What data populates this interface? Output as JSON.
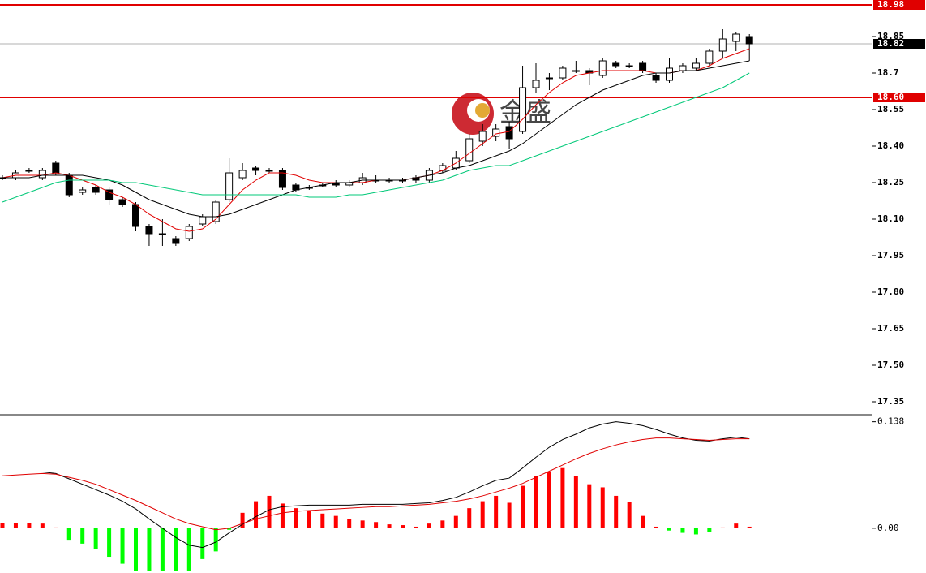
{
  "chart_data": {
    "type": "candlestick",
    "watermark": "金盛",
    "ylim": [
      17.3,
      19.0
    ],
    "yticks": [
      18.85,
      18.7,
      18.55,
      {
        "value": 18.4,
        "label": "18.40"
      },
      18.25,
      {
        "value": 18.1,
        "label": "18.10"
      },
      17.95,
      {
        "value": 17.8,
        "label": "17.80"
      },
      17.65,
      {
        "value": 17.5,
        "label": "17.50"
      },
      17.35
    ],
    "levels": [
      {
        "value": 18.98,
        "label": "18.98",
        "color": "#e00000"
      },
      {
        "value": 18.6,
        "label": "18.60",
        "color": "#e00000"
      },
      {
        "value": 18.82,
        "label": "18.82",
        "color": "#b0b0b0"
      }
    ],
    "up_color": "#ffffff",
    "down_color": "#000000",
    "open": [
      18.27,
      18.27,
      18.3,
      18.27,
      18.33,
      18.28,
      18.21,
      18.23,
      18.22,
      18.18,
      18.16,
      18.07,
      18.04,
      18.02,
      18.02,
      18.08,
      18.09,
      18.18,
      18.27,
      18.31,
      18.3,
      18.3,
      18.24,
      18.23,
      18.24,
      18.25,
      18.24,
      18.25,
      18.26,
      18.26,
      18.26,
      18.27,
      18.26,
      18.3,
      18.31,
      18.34,
      18.42,
      18.44,
      18.48,
      18.46,
      18.64,
      18.68,
      18.68,
      18.71,
      18.71,
      18.69,
      18.74,
      18.73,
      18.74,
      18.69,
      18.67,
      18.71,
      18.72,
      18.74,
      18.79,
      18.83,
      18.85
    ],
    "high": [
      18.28,
      18.3,
      18.31,
      18.31,
      18.34,
      18.29,
      18.23,
      18.24,
      18.23,
      18.19,
      18.17,
      18.08,
      18.1,
      18.03,
      18.08,
      18.12,
      18.18,
      18.35,
      18.33,
      18.32,
      18.31,
      18.31,
      18.25,
      18.24,
      18.25,
      18.26,
      18.26,
      18.29,
      18.28,
      18.27,
      18.27,
      18.28,
      18.31,
      18.33,
      18.38,
      18.45,
      18.49,
      18.49,
      18.5,
      18.73,
      18.74,
      18.7,
      18.73,
      18.75,
      18.72,
      18.76,
      18.75,
      18.74,
      18.75,
      18.7,
      18.76,
      18.74,
      18.76,
      18.8,
      18.88,
      18.87,
      18.86
    ],
    "low": [
      18.26,
      18.26,
      18.29,
      18.26,
      18.28,
      18.19,
      18.2,
      18.2,
      18.16,
      18.15,
      18.05,
      17.99,
      17.99,
      17.99,
      18.01,
      18.07,
      18.08,
      18.17,
      18.26,
      18.28,
      18.29,
      18.22,
      18.21,
      18.22,
      18.23,
      18.23,
      18.23,
      18.24,
      18.25,
      18.25,
      18.25,
      18.25,
      18.25,
      18.29,
      18.3,
      18.33,
      18.4,
      18.42,
      18.39,
      18.45,
      18.62,
      18.63,
      18.67,
      18.7,
      18.65,
      18.68,
      18.72,
      18.72,
      18.7,
      18.66,
      18.66,
      18.7,
      18.71,
      18.73,
      18.76,
      18.79,
      18.75
    ],
    "close": [
      18.27,
      18.29,
      18.3,
      18.3,
      18.29,
      18.2,
      18.22,
      18.21,
      18.18,
      18.16,
      18.07,
      18.04,
      18.04,
      18.0,
      18.07,
      18.11,
      18.17,
      18.29,
      18.3,
      18.3,
      18.3,
      18.23,
      18.22,
      18.23,
      18.24,
      18.24,
      18.25,
      18.27,
      18.26,
      18.26,
      18.26,
      18.26,
      18.3,
      18.32,
      18.35,
      18.43,
      18.46,
      18.47,
      18.43,
      18.64,
      18.67,
      18.68,
      18.72,
      18.71,
      18.7,
      18.75,
      18.73,
      18.73,
      18.71,
      18.67,
      18.72,
      18.73,
      18.74,
      18.79,
      18.84,
      18.86,
      18.82
    ],
    "ma": [
      {
        "color": "#e00000",
        "values": [
          18.27,
          18.28,
          18.28,
          18.28,
          18.29,
          18.28,
          18.26,
          18.24,
          18.21,
          18.19,
          18.16,
          18.12,
          18.09,
          18.06,
          18.05,
          18.06,
          18.1,
          18.16,
          18.22,
          18.26,
          18.29,
          18.29,
          18.28,
          18.26,
          18.25,
          18.25,
          18.25,
          18.25,
          18.26,
          18.26,
          18.26,
          18.27,
          18.28,
          18.3,
          18.33,
          18.37,
          18.41,
          18.45,
          18.46,
          18.51,
          18.57,
          18.62,
          18.66,
          18.69,
          18.7,
          18.71,
          18.71,
          18.71,
          18.71,
          18.7,
          18.7,
          18.71,
          18.71,
          18.73,
          18.76,
          18.78,
          18.8
        ]
      },
      {
        "color": "#000000",
        "values": [
          18.27,
          18.27,
          18.27,
          18.28,
          18.28,
          18.28,
          18.28,
          18.27,
          18.26,
          18.24,
          18.21,
          18.18,
          18.16,
          18.14,
          18.12,
          18.11,
          18.11,
          18.12,
          18.14,
          18.16,
          18.18,
          18.2,
          18.22,
          18.23,
          18.24,
          18.25,
          18.25,
          18.26,
          18.26,
          18.26,
          18.26,
          18.27,
          18.28,
          18.29,
          18.31,
          18.32,
          18.34,
          18.36,
          18.38,
          18.41,
          18.45,
          18.49,
          18.53,
          18.57,
          18.6,
          18.63,
          18.65,
          18.67,
          18.69,
          18.7,
          18.7,
          18.71,
          18.71,
          18.72,
          18.73,
          18.74,
          18.75
        ]
      },
      {
        "color": "#00c878",
        "values": [
          18.17,
          18.19,
          18.21,
          18.23,
          18.25,
          18.26,
          18.26,
          18.26,
          18.26,
          18.25,
          18.25,
          18.24,
          18.23,
          18.22,
          18.21,
          18.2,
          18.2,
          18.2,
          18.2,
          18.2,
          18.2,
          18.2,
          18.2,
          18.19,
          18.19,
          18.19,
          18.2,
          18.2,
          18.21,
          18.22,
          18.23,
          18.24,
          18.25,
          18.26,
          18.28,
          18.3,
          18.31,
          18.32,
          18.32,
          18.34,
          18.36,
          18.38,
          18.4,
          18.42,
          18.44,
          18.46,
          18.48,
          18.5,
          18.52,
          18.54,
          18.56,
          18.58,
          18.6,
          18.62,
          18.64,
          18.67,
          18.7
        ]
      }
    ],
    "macd": {
      "ylim": [
        -0.058,
        0.145
      ],
      "yticks": [
        0.138,
        {
          "value": 0,
          "label": "0.00"
        }
      ],
      "pos_color": "#ff0000",
      "neg_color": "#00ff00",
      "hist": [
        0.007,
        0.007,
        0.007,
        0.006,
        0.001,
        -0.015,
        -0.02,
        -0.027,
        -0.037,
        -0.046,
        -0.055,
        -0.055,
        -0.055,
        -0.055,
        -0.055,
        -0.04,
        -0.03,
        -0.002,
        0.02,
        0.035,
        0.042,
        0.032,
        0.026,
        0.022,
        0.019,
        0.016,
        0.012,
        0.01,
        0.008,
        0.005,
        0.004,
        0.002,
        0.006,
        0.01,
        0.016,
        0.026,
        0.035,
        0.042,
        0.033,
        0.055,
        0.068,
        0.073,
        0.078,
        0.068,
        0.057,
        0.053,
        0.042,
        0.034,
        0.016,
        0.002,
        -0.003,
        -0.006,
        -0.008,
        -0.005,
        0.001,
        0.006,
        0.002
      ],
      "lines": [
        {
          "color": "#000000",
          "values": [
            0.073,
            0.073,
            0.073,
            0.073,
            0.071,
            0.064,
            0.057,
            0.05,
            0.043,
            0.035,
            0.025,
            0.012,
            0,
            -0.012,
            -0.022,
            -0.025,
            -0.018,
            -0.006,
            0.005,
            0.015,
            0.024,
            0.028,
            0.029,
            0.03,
            0.03,
            0.03,
            0.03,
            0.031,
            0.031,
            0.031,
            0.031,
            0.032,
            0.033,
            0.036,
            0.04,
            0.047,
            0.055,
            0.062,
            0.065,
            0.078,
            0.092,
            0.105,
            0.115,
            0.122,
            0.13,
            0.135,
            0.138,
            0.136,
            0.133,
            0.128,
            0.122,
            0.117,
            0.114,
            0.113,
            0.116,
            0.118,
            0.116
          ]
        },
        {
          "color": "#e00000",
          "values": [
            0.068,
            0.069,
            0.07,
            0.071,
            0.07,
            0.066,
            0.062,
            0.057,
            0.05,
            0.043,
            0.036,
            0.028,
            0.02,
            0.012,
            0.006,
            0.002,
            -0.002,
            0,
            0.006,
            0.012,
            0.016,
            0.02,
            0.022,
            0.023,
            0.024,
            0.025,
            0.026,
            0.027,
            0.028,
            0.028,
            0.029,
            0.03,
            0.031,
            0.033,
            0.035,
            0.038,
            0.042,
            0.047,
            0.052,
            0.058,
            0.066,
            0.074,
            0.082,
            0.09,
            0.097,
            0.103,
            0.108,
            0.112,
            0.115,
            0.117,
            0.117,
            0.116,
            0.115,
            0.114,
            0.115,
            0.116,
            0.116
          ]
        }
      ]
    }
  }
}
